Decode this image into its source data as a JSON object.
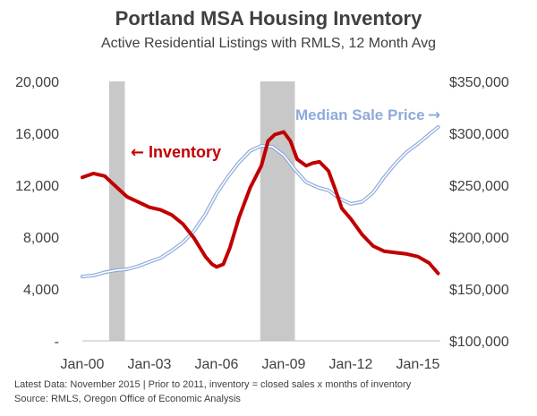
{
  "title": "Portland MSA Housing Inventory",
  "subtitle": "Active Residential Listings with RMLS, 12 Month Avg",
  "colors": {
    "inventory": "#c00000",
    "price": "#8eaadb",
    "recession": "#c8c8c8",
    "axis": "#404040"
  },
  "footnote": {
    "line1": "Latest Data: November 2015  |  Prior to 2011, inventory = closed sales x months of inventory",
    "line2": "Source: RMLS, Oregon Office of Economic Analysis"
  },
  "chart_data": {
    "type": "line",
    "title": "Portland MSA Housing Inventory",
    "subtitle": "Active Residential Listings with RMLS, 12 Month Avg",
    "x_ticks": [
      "Jan-00",
      "Jan-03",
      "Jan-06",
      "Jan-09",
      "Jan-12",
      "Jan-15"
    ],
    "x_range": [
      2000.0,
      2016.0
    ],
    "y_left": {
      "range": [
        0,
        20000
      ],
      "ticks": [
        "-",
        "4,000",
        "8,000",
        "12,000",
        "16,000",
        "20,000"
      ],
      "tick_values": [
        0,
        4000,
        8000,
        12000,
        16000,
        20000
      ]
    },
    "y_right": {
      "range": [
        100000,
        350000
      ],
      "ticks": [
        "$100,000",
        "$150,000",
        "$200,000",
        "$250,000",
        "$300,000",
        "$350,000"
      ],
      "tick_values": [
        100000,
        150000,
        200000,
        250000,
        300000,
        350000
      ]
    },
    "recessions": [
      [
        2001.2,
        2001.9
      ],
      [
        2007.95,
        2009.5
      ]
    ],
    "annotations": [
      {
        "text": "Inventory",
        "arrow": "←",
        "series": "Inventory"
      },
      {
        "text": "Median Sale Price",
        "arrow": "→",
        "series": "Median Sale Price"
      }
    ],
    "series": [
      {
        "name": "Inventory",
        "axis": "left",
        "x": [
          2000.0,
          2000.5,
          2001.0,
          2001.5,
          2002.0,
          2002.5,
          2003.0,
          2003.5,
          2004.0,
          2004.5,
          2005.0,
          2005.5,
          2005.8,
          2006.0,
          2006.3,
          2006.6,
          2007.0,
          2007.5,
          2008.0,
          2008.3,
          2008.6,
          2009.0,
          2009.3,
          2009.6,
          2010.0,
          2010.3,
          2010.6,
          2011.0,
          2011.3,
          2011.6,
          2012.0,
          2012.5,
          2013.0,
          2013.5,
          2014.0,
          2014.5,
          2015.0,
          2015.5,
          2015.9
        ],
        "values": [
          12600,
          12900,
          12700,
          11900,
          11100,
          10700,
          10300,
          10100,
          9700,
          9000,
          7900,
          6500,
          5900,
          5700,
          5900,
          7200,
          9500,
          11800,
          13500,
          15400,
          15900,
          16100,
          15400,
          14000,
          13500,
          13700,
          13800,
          13100,
          11700,
          10200,
          9400,
          8200,
          7300,
          6900,
          6800,
          6700,
          6500,
          6000,
          5200
        ]
      },
      {
        "name": "Median Sale Price",
        "axis": "right",
        "x": [
          2000.0,
          2000.5,
          2001.0,
          2001.5,
          2002.0,
          2002.5,
          2003.0,
          2003.5,
          2004.0,
          2004.5,
          2005.0,
          2005.5,
          2006.0,
          2006.5,
          2007.0,
          2007.5,
          2008.0,
          2008.5,
          2009.0,
          2009.5,
          2010.0,
          2010.5,
          2011.0,
          2011.5,
          2012.0,
          2012.5,
          2013.0,
          2013.5,
          2014.0,
          2014.5,
          2015.0,
          2015.5,
          2015.9
        ],
        "values": [
          162000,
          163000,
          166000,
          168000,
          169000,
          172000,
          176000,
          180000,
          187000,
          195000,
          206000,
          222000,
          242000,
          258000,
          272000,
          283000,
          288000,
          287000,
          279000,
          265000,
          253000,
          248000,
          245000,
          237000,
          232000,
          234000,
          243000,
          258000,
          271000,
          282000,
          290000,
          299000,
          306000
        ]
      }
    ]
  }
}
